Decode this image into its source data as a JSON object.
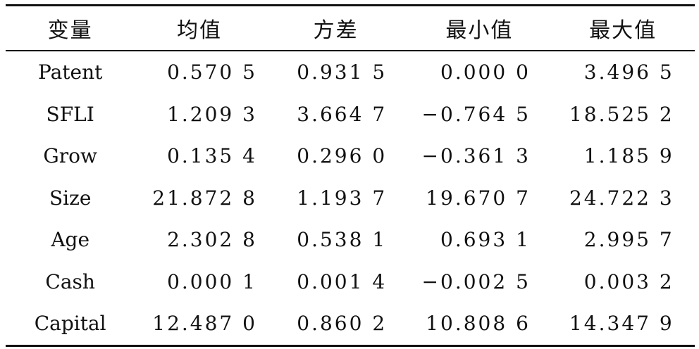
{
  "table": {
    "headers": [
      "变量",
      "均值",
      "方差",
      "最小值",
      "最大值"
    ],
    "rows": [
      [
        "Patent",
        "0.570 5",
        "0.931 5",
        "0.000 0",
        "3.496 5"
      ],
      [
        "SFLI",
        "1.209 3",
        "3.664 7",
        "−0.764 5",
        "18.525 2"
      ],
      [
        "Grow",
        "0.135 4",
        "0.296 0",
        "−0.361 3",
        "1.185 9"
      ],
      [
        "Size",
        "21.872 8",
        "1.193 7",
        "19.670 7",
        "24.722 3"
      ],
      [
        "Age",
        "2.302 8",
        "0.538 1",
        "0.693 1",
        "2.995 7"
      ],
      [
        "Cash",
        "0.000 1",
        "0.001 4",
        "−0.002 5",
        "0.003 2"
      ],
      [
        "Capital",
        "12.487 0",
        "0.860 2",
        "10.808 6",
        "14.347 9"
      ]
    ]
  }
}
